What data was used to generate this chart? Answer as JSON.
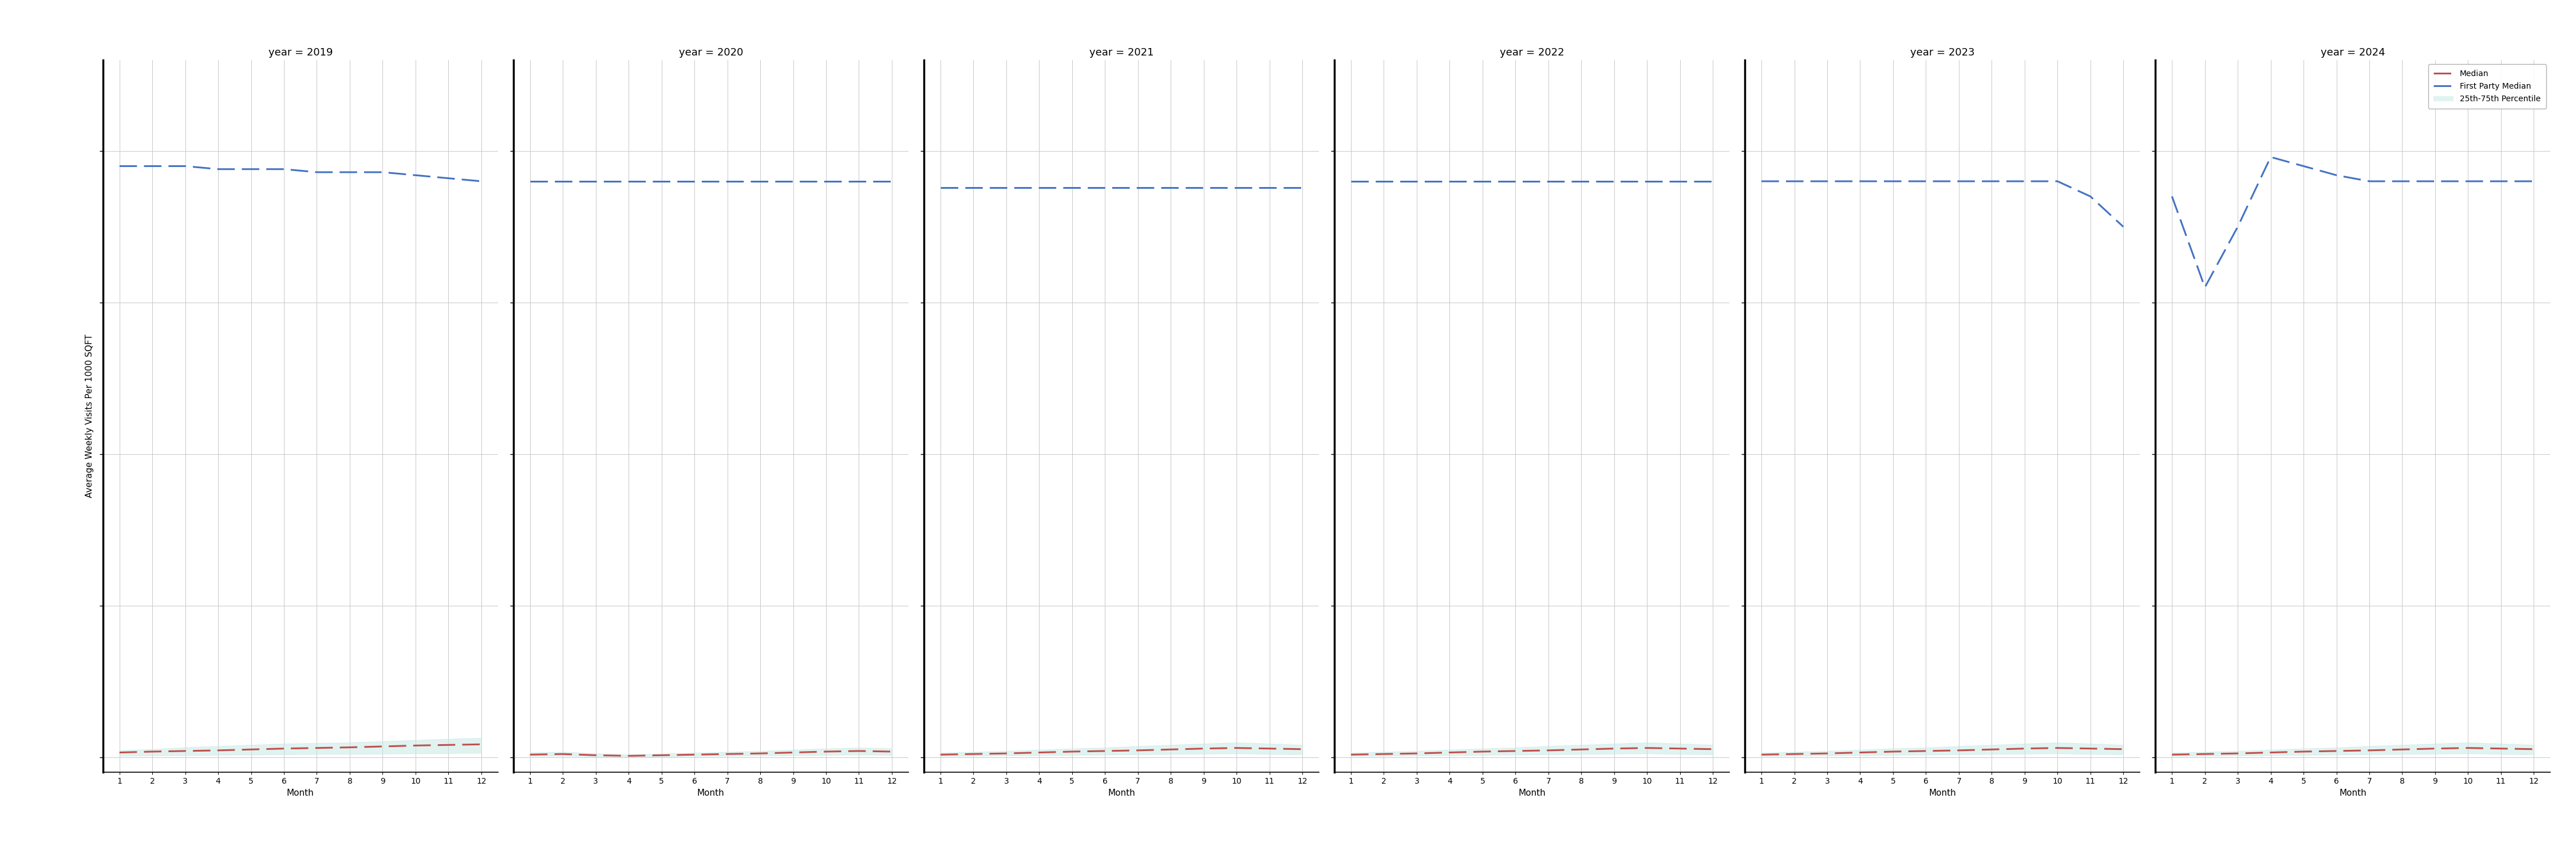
{
  "years": [
    2019,
    2020,
    2021,
    2022,
    2023,
    2024
  ],
  "months": [
    1,
    2,
    3,
    4,
    5,
    6,
    7,
    8,
    9,
    10,
    11,
    12
  ],
  "ylim": [
    -0.5,
    23
  ],
  "yticks": [
    0,
    5,
    10,
    15,
    20
  ],
  "ylabel": "Average Weekly Visits Per 1000 SQFT",
  "xlabel": "Month",
  "blue_median": {
    "2019": [
      19.5,
      19.5,
      19.5,
      19.4,
      19.4,
      19.4,
      19.3,
      19.3,
      19.3,
      19.2,
      19.1,
      19.0
    ],
    "2020": [
      19.0,
      19.0,
      19.0,
      19.0,
      19.0,
      19.0,
      19.0,
      19.0,
      19.0,
      19.0,
      19.0,
      19.0
    ],
    "2021": [
      18.8,
      18.8,
      18.8,
      18.8,
      18.8,
      18.8,
      18.8,
      18.8,
      18.8,
      18.8,
      18.8,
      18.8
    ],
    "2022": [
      19.0,
      19.0,
      19.0,
      19.0,
      19.0,
      19.0,
      19.0,
      19.0,
      19.0,
      19.0,
      19.0,
      19.0
    ],
    "2023": [
      19.0,
      19.0,
      19.0,
      19.0,
      19.0,
      19.0,
      19.0,
      19.0,
      19.0,
      19.0,
      18.5,
      17.5
    ],
    "2024": [
      18.5,
      15.5,
      17.5,
      19.8,
      19.5,
      19.2,
      19.0,
      19.0,
      19.0,
      19.0,
      19.0,
      19.0
    ]
  },
  "red_median": {
    "2019": [
      0.15,
      0.18,
      0.2,
      0.22,
      0.25,
      0.28,
      0.3,
      0.32,
      0.35,
      0.38,
      0.4,
      0.42
    ],
    "2020": [
      0.08,
      0.1,
      0.06,
      0.04,
      0.06,
      0.08,
      0.1,
      0.12,
      0.15,
      0.18,
      0.2,
      0.18
    ],
    "2021": [
      0.08,
      0.1,
      0.12,
      0.15,
      0.18,
      0.2,
      0.22,
      0.25,
      0.28,
      0.3,
      0.28,
      0.26
    ],
    "2022": [
      0.08,
      0.1,
      0.12,
      0.15,
      0.18,
      0.2,
      0.22,
      0.25,
      0.28,
      0.3,
      0.28,
      0.26
    ],
    "2023": [
      0.08,
      0.1,
      0.12,
      0.15,
      0.18,
      0.2,
      0.22,
      0.25,
      0.28,
      0.3,
      0.28,
      0.26
    ],
    "2024": [
      0.08,
      0.1,
      0.12,
      0.15,
      0.18,
      0.2,
      0.22,
      0.25,
      0.28,
      0.3,
      0.28,
      0.26
    ]
  },
  "percentile_25": {
    "2019": [
      0.04,
      0.05,
      0.06,
      0.07,
      0.08,
      0.09,
      0.1,
      0.1,
      0.11,
      0.12,
      0.13,
      0.14
    ],
    "2020": [
      0.03,
      0.04,
      0.02,
      0.01,
      0.02,
      0.03,
      0.04,
      0.05,
      0.06,
      0.07,
      0.08,
      0.07
    ],
    "2021": [
      0.03,
      0.04,
      0.05,
      0.06,
      0.07,
      0.08,
      0.09,
      0.1,
      0.11,
      0.12,
      0.1,
      0.09
    ],
    "2022": [
      0.03,
      0.04,
      0.05,
      0.06,
      0.07,
      0.08,
      0.09,
      0.1,
      0.11,
      0.12,
      0.1,
      0.09
    ],
    "2023": [
      0.03,
      0.04,
      0.05,
      0.06,
      0.07,
      0.08,
      0.09,
      0.1,
      0.11,
      0.12,
      0.1,
      0.09
    ],
    "2024": [
      0.03,
      0.04,
      0.05,
      0.06,
      0.07,
      0.08,
      0.09,
      0.1,
      0.11,
      0.12,
      0.1,
      0.09
    ]
  },
  "percentile_75": {
    "2019": [
      0.22,
      0.26,
      0.32,
      0.36,
      0.4,
      0.44,
      0.46,
      0.48,
      0.52,
      0.56,
      0.6,
      0.63
    ],
    "2020": [
      0.15,
      0.17,
      0.12,
      0.08,
      0.11,
      0.14,
      0.17,
      0.2,
      0.24,
      0.28,
      0.31,
      0.28
    ],
    "2021": [
      0.14,
      0.17,
      0.2,
      0.24,
      0.28,
      0.31,
      0.36,
      0.4,
      0.44,
      0.48,
      0.44,
      0.4
    ],
    "2022": [
      0.14,
      0.17,
      0.2,
      0.24,
      0.28,
      0.31,
      0.36,
      0.4,
      0.44,
      0.48,
      0.44,
      0.4
    ],
    "2023": [
      0.14,
      0.17,
      0.2,
      0.24,
      0.28,
      0.31,
      0.36,
      0.4,
      0.44,
      0.48,
      0.44,
      0.4
    ],
    "2024": [
      0.14,
      0.17,
      0.2,
      0.24,
      0.28,
      0.31,
      0.36,
      0.4,
      0.44,
      0.48,
      0.44,
      0.4
    ]
  },
  "blue_color": "#4472c4",
  "red_color": "#c0504d",
  "fill_color": "#c5e8e4",
  "fill_alpha": 0.5,
  "background_color": "#ffffff",
  "grid_color": "#c8c8c8",
  "panel_divider_color": "#000000",
  "title_fontsize": 13,
  "axis_fontsize": 11,
  "tick_fontsize": 10,
  "legend_fontsize": 10,
  "linewidth": 2.2
}
